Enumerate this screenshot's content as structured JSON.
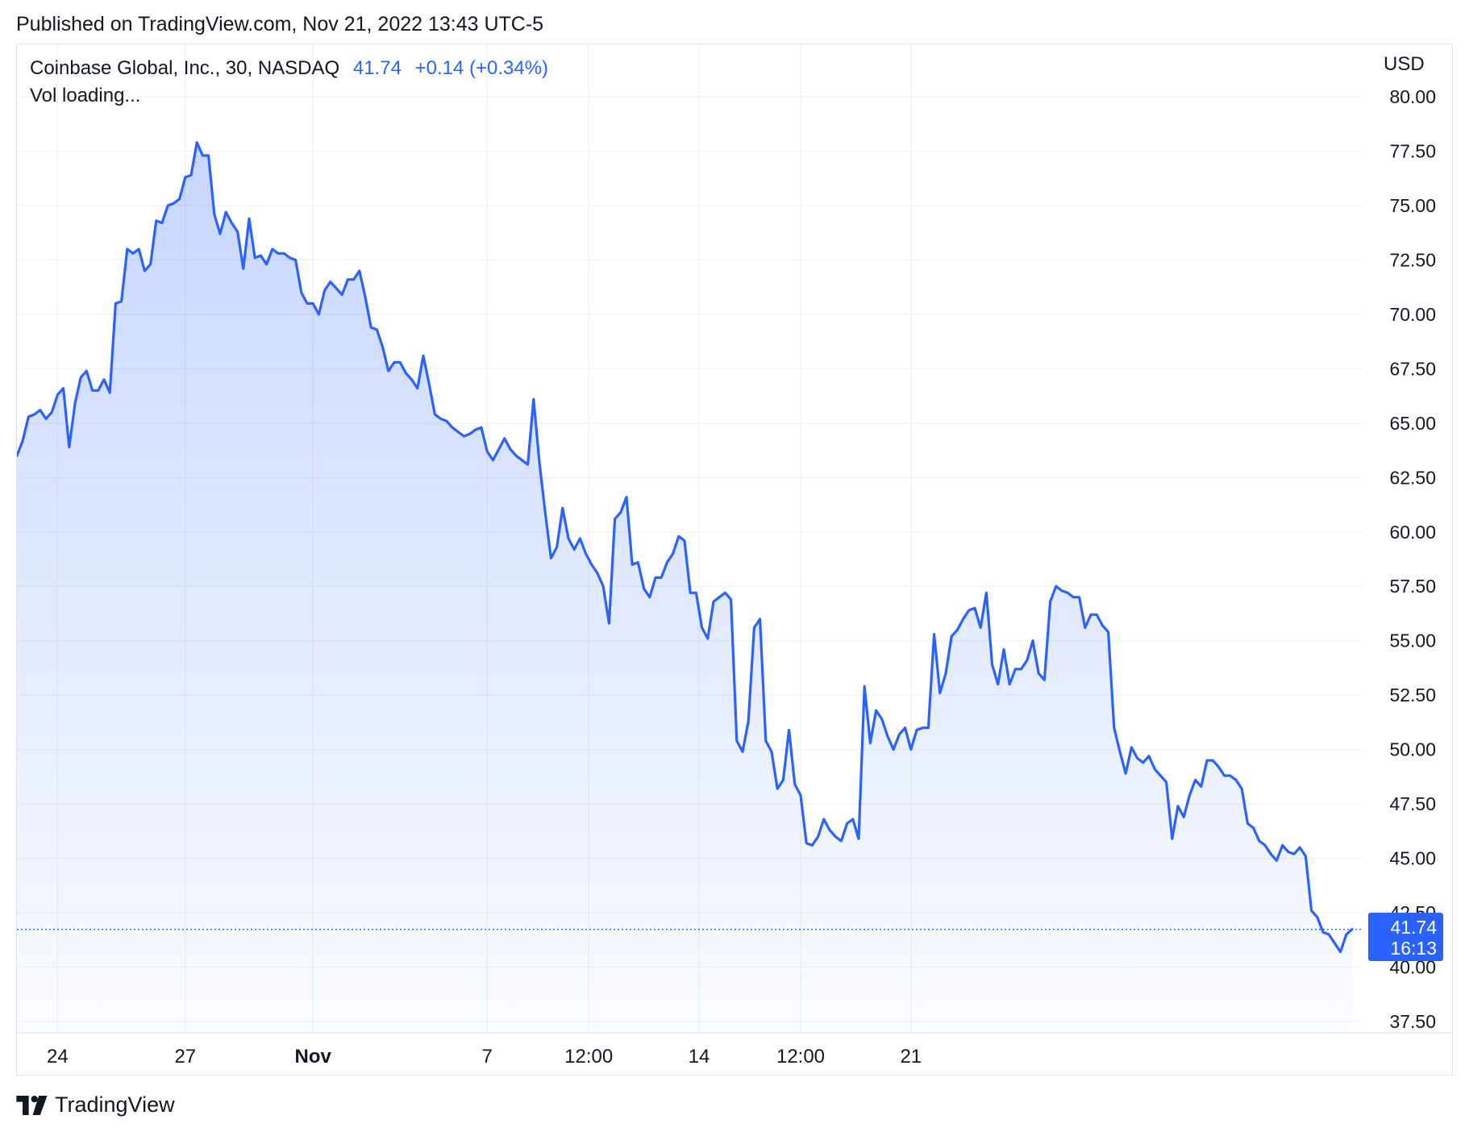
{
  "header": {
    "published_text": "Published on TradingView.com, Nov 21, 2022 13:43 UTC-5"
  },
  "legend": {
    "symbol": "Coinbase Global, Inc., 30, NASDAQ",
    "last_price": "41.74",
    "change": "+0.14 (+0.34%)",
    "volume_text": "Vol loading..."
  },
  "price_scale": {
    "currency": "USD"
  },
  "price_tag": {
    "price": "41.74",
    "countdown": "16:13"
  },
  "branding": {
    "logo_text": "TradingView"
  },
  "colors": {
    "line": "#2962ff",
    "area_top": "#2962ff",
    "grid": "#f0f3fa",
    "text": "#131722"
  },
  "chart_data": {
    "type": "area",
    "title": "Coinbase Global, Inc., 30, NASDAQ",
    "ylabel": "USD",
    "ylim": [
      37.5,
      80
    ],
    "y_ticks": [
      "80.00",
      "77.50",
      "75.00",
      "72.50",
      "70.00",
      "67.50",
      "65.00",
      "62.50",
      "60.00",
      "57.50",
      "55.00",
      "52.50",
      "50.00",
      "47.50",
      "45.00",
      "42.50",
      "40.00",
      "37.50"
    ],
    "x_tick_labels": [
      {
        "label": "24",
        "bar": 7,
        "bold": false
      },
      {
        "label": "27",
        "bar": 29,
        "bold": false
      },
      {
        "label": "Nov",
        "bar": 51,
        "bold": true
      },
      {
        "label": "7",
        "bar": 81,
        "bold": false
      },
      {
        "label": "12:00",
        "bar": 98.5,
        "bold": false
      },
      {
        "label": "14",
        "bar": 117.5,
        "bold": false
      },
      {
        "label": "12:00",
        "bar": 135,
        "bold": false
      },
      {
        "label": "21",
        "bar": 154,
        "bold": false
      }
    ],
    "grid": true,
    "last_value": 41.74,
    "series": [
      {
        "values": [
          63.5,
          64.2,
          65.3,
          65.4,
          65.6,
          65.2,
          65.5,
          66.3,
          66.6,
          63.9,
          65.9,
          67.1,
          67.4,
          66.5,
          66.5,
          67.0,
          66.4,
          70.5,
          70.6,
          73.0,
          72.8,
          73.0,
          72.0,
          72.3,
          74.3,
          74.2,
          75.0,
          75.1,
          75.3,
          76.3,
          76.4,
          77.9,
          77.3,
          77.3,
          74.6,
          73.7,
          74.7,
          74.2,
          73.8,
          72.1,
          74.4,
          72.6,
          72.7,
          72.3,
          73.0,
          72.8,
          72.8,
          72.6,
          72.5,
          71.0,
          70.5,
          70.5,
          70.0,
          71.1,
          71.5,
          71.2,
          70.9,
          71.6,
          71.6,
          72.0,
          70.8,
          69.4,
          69.3,
          68.5,
          67.4,
          67.8,
          67.8,
          67.3,
          67.0,
          66.6,
          68.1,
          66.8,
          65.4,
          65.2,
          65.1,
          64.8,
          64.6,
          64.4,
          64.5,
          64.7,
          64.8,
          63.7,
          63.3,
          63.8,
          64.3,
          63.8,
          63.5,
          63.3,
          63.1,
          66.1,
          63.2,
          60.9,
          58.8,
          59.3,
          61.1,
          59.7,
          59.2,
          59.7,
          59.0,
          58.5,
          58.1,
          57.5,
          55.8,
          60.6,
          60.9,
          61.6,
          58.5,
          58.6,
          57.4,
          57.0,
          57.9,
          57.9,
          58.6,
          59.0,
          59.8,
          59.6,
          57.2,
          57.2,
          55.6,
          55.1,
          56.8,
          57.0,
          57.2,
          56.9,
          50.4,
          49.9,
          51.3,
          55.6,
          56.0,
          50.4,
          49.9,
          48.2,
          48.6,
          50.9,
          48.4,
          47.9,
          45.7,
          45.6,
          46.0,
          46.8,
          46.3,
          46.0,
          45.8,
          46.6,
          46.8,
          45.9,
          52.9,
          50.3,
          51.8,
          51.4,
          50.6,
          50.0,
          50.7,
          51.0,
          50.0,
          50.9,
          51.0,
          51.0,
          55.3,
          52.6,
          53.5,
          55.2,
          55.5,
          56.0,
          56.4,
          56.5,
          55.6,
          57.2,
          53.9,
          53.0,
          54.6,
          53.0,
          53.7,
          53.7,
          54.1,
          55.0,
          53.5,
          53.2,
          56.8,
          57.5,
          57.3,
          57.2,
          57.0,
          57.0,
          55.6,
          56.2,
          56.2,
          55.7,
          55.4,
          51.0,
          49.9,
          48.9,
          50.1,
          49.6,
          49.4,
          49.7,
          49.1,
          48.8,
          48.5,
          45.9,
          47.4,
          46.9,
          47.9,
          48.6,
          48.3,
          49.5,
          49.5,
          49.2,
          48.8,
          48.8,
          48.6,
          48.2,
          46.6,
          46.4,
          45.8,
          45.6,
          45.2,
          44.9,
          45.6,
          45.3,
          45.2,
          45.5,
          45.1,
          42.6,
          42.3,
          41.6,
          41.5,
          41.1,
          40.7,
          41.5,
          41.74
        ]
      }
    ]
  }
}
